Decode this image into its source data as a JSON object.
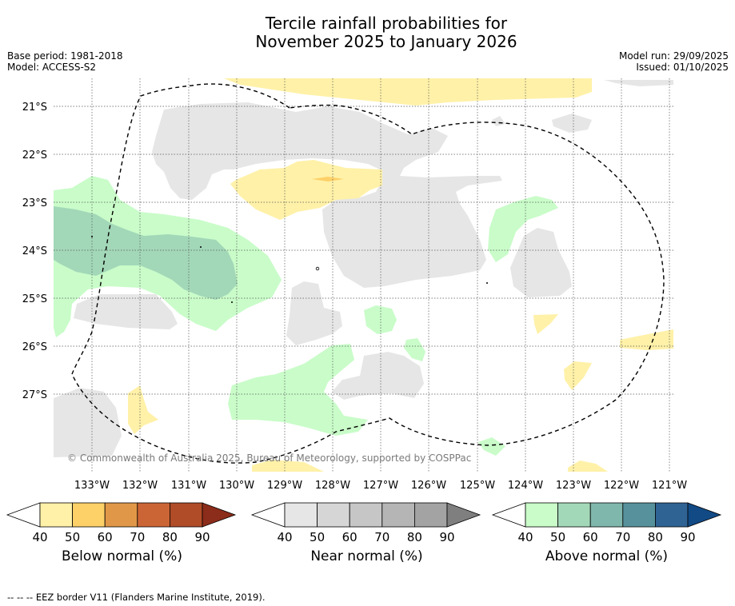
{
  "title": {
    "line1": "Tercile rainfall probabilities for",
    "line2": "November 2025 to January 2026"
  },
  "meta_left": {
    "base_period": "Base period: 1981-2018",
    "model": "Model: ACCESS-S2"
  },
  "meta_right": {
    "model_run": "Model run: 29/09/2025",
    "issued": "Issued: 01/10/2025"
  },
  "map": {
    "lat_labels": [
      "21°S",
      "22°S",
      "23°S",
      "24°S",
      "25°S",
      "26°S",
      "27°S"
    ],
    "lon_labels": [
      "133°W",
      "132°W",
      "131°W",
      "130°W",
      "129°W",
      "128°W",
      "127°W",
      "126°W",
      "125°W",
      "124°W",
      "123°W",
      "122°W",
      "121°W"
    ],
    "copyright": "© Commonwealth of Australia 2025, Bureau of Meteorology, supported by COSPPac"
  },
  "colorbars": [
    {
      "label": "Below normal (%)",
      "ticks": [
        "40",
        "50",
        "60",
        "70",
        "80",
        "90"
      ],
      "colors": [
        "#fff1a8",
        "#fdd068",
        "#e09848",
        "#cc6535",
        "#b04c28",
        "#8c2c1a"
      ]
    },
    {
      "label": "Near normal (%)",
      "ticks": [
        "40",
        "50",
        "60",
        "70",
        "80",
        "90"
      ],
      "colors": [
        "#e6e6e6",
        "#d6d6d6",
        "#c6c6c6",
        "#b5b5b5",
        "#a3a3a3",
        "#7f7f7f"
      ]
    },
    {
      "label": "Above normal (%)",
      "ticks": [
        "40",
        "50",
        "60",
        "70",
        "80",
        "90"
      ],
      "colors": [
        "#c9fcc9",
        "#a2d8b8",
        "#80b7ac",
        "#57929c",
        "#2f6394",
        "#124a85"
      ]
    }
  ],
  "footnote": "-- -- -- EEZ border V11 (Flanders Marine Institute, 2019)."
}
